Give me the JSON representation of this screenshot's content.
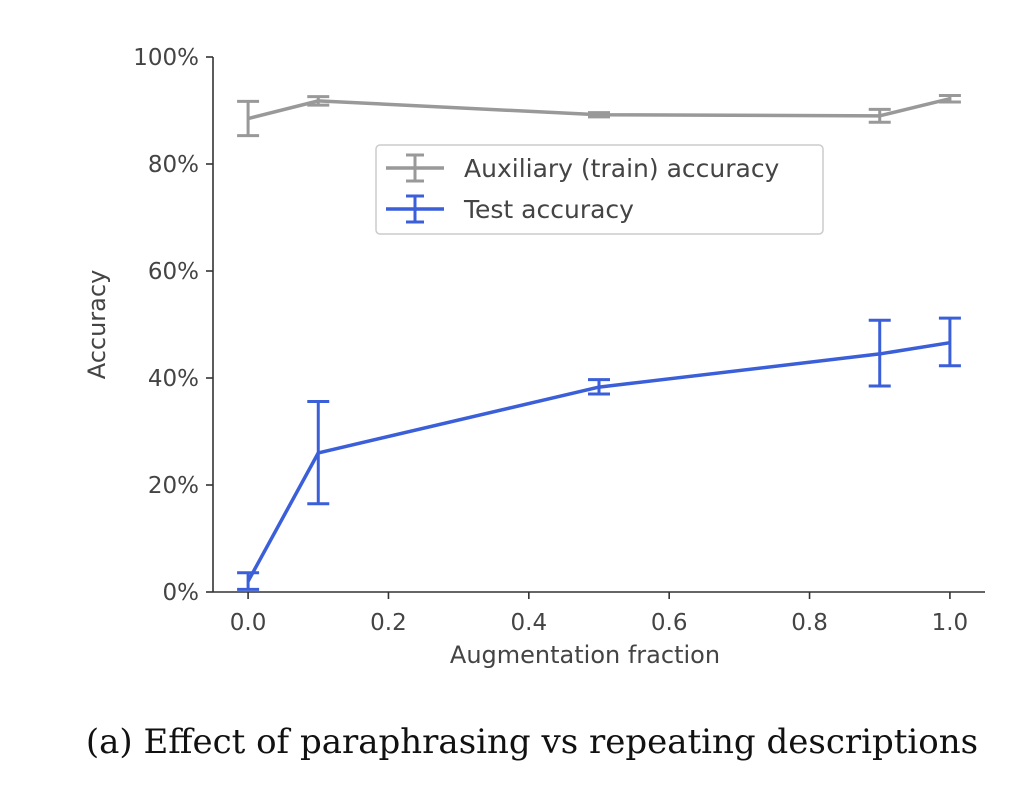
{
  "chart_data": {
    "type": "line",
    "title": "",
    "xlabel": "Augmentation fraction",
    "ylabel": "Accuracy",
    "xlim": [
      -0.05,
      1.05
    ],
    "ylim": [
      0,
      100
    ],
    "x_ticks": [
      0.0,
      0.2,
      0.4,
      0.6,
      0.8,
      1.0
    ],
    "x_tick_labels": [
      "0.0",
      "0.2",
      "0.4",
      "0.6",
      "0.8",
      "1.0"
    ],
    "y_ticks": [
      0,
      20,
      40,
      60,
      80,
      100
    ],
    "y_tick_labels": [
      "0%",
      "20%",
      "40%",
      "60%",
      "80%",
      "100%"
    ],
    "grid": false,
    "legend_position": "upper-center",
    "series": [
      {
        "name": "Auxiliary (train) accuracy",
        "color": "#999999",
        "x": [
          0.0,
          0.1,
          0.5,
          0.9,
          1.0
        ],
        "y": [
          88.5,
          91.8,
          89.2,
          89.0,
          92.2
        ],
        "err_low": [
          85.3,
          91.0,
          88.8,
          87.8,
          91.6
        ],
        "err_high": [
          91.7,
          92.6,
          89.6,
          90.2,
          92.8
        ]
      },
      {
        "name": "Test accuracy",
        "color": "#3a5fd8",
        "x": [
          0.0,
          0.1,
          0.5,
          0.9,
          1.0
        ],
        "y": [
          2.0,
          26.0,
          38.3,
          44.5,
          46.6
        ],
        "err_low": [
          0.5,
          16.5,
          37.0,
          38.5,
          42.3
        ],
        "err_high": [
          3.6,
          35.6,
          39.7,
          50.8,
          51.2
        ]
      }
    ]
  },
  "caption": "(a) Effect of paraphrasing vs repeating descriptions"
}
